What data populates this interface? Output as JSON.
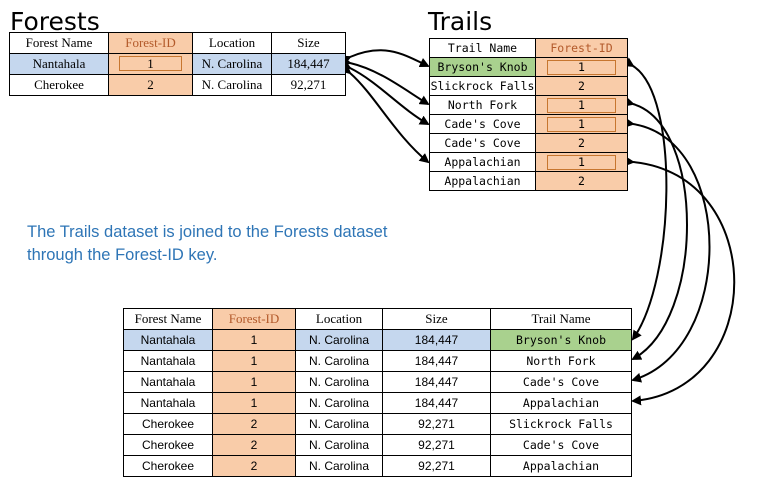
{
  "forests": {
    "title": "Forests",
    "headers": [
      "Forest Name",
      "Forest-ID",
      "Location",
      "Size"
    ],
    "rows": [
      [
        "Nantahala",
        "1",
        "N. Carolina",
        "184,447"
      ],
      [
        "Cherokee",
        "2",
        "N. Carolina",
        "92,271"
      ]
    ]
  },
  "trails": {
    "title": "Trails",
    "headers": [
      "Trail Name",
      "Forest-ID"
    ],
    "rows": [
      [
        "Bryson's Knob",
        "1"
      ],
      [
        "Slickrock Falls",
        "2"
      ],
      [
        "North Fork",
        "1"
      ],
      [
        "Cade's Cove",
        "1"
      ],
      [
        "Cade's Cove",
        "2"
      ],
      [
        "Appalachian",
        "1"
      ],
      [
        "Appalachian",
        "2"
      ]
    ]
  },
  "caption": {
    "line1": "The Trails dataset is joined to the Forests dataset",
    "line2": "through the Forest-ID key."
  },
  "joined": {
    "headers": [
      "Forest Name",
      "Forest-ID",
      "Location",
      "Size",
      "Trail Name"
    ],
    "rows": [
      [
        "Nantahala",
        "1",
        "N. Carolina",
        "184,447",
        "Bryson's Knob"
      ],
      [
        "Nantahala",
        "1",
        "N. Carolina",
        "184,447",
        "North Fork"
      ],
      [
        "Nantahala",
        "1",
        "N. Carolina",
        "184,447",
        "Cade's Cove"
      ],
      [
        "Nantahala",
        "1",
        "N. Carolina",
        "184,447",
        "Appalachian"
      ],
      [
        "Cherokee",
        "2",
        "N. Carolina",
        "92,271",
        "Slickrock Falls"
      ],
      [
        "Cherokee",
        "2",
        "N. Carolina",
        "92,271",
        "Cade's Cove"
      ],
      [
        "Cherokee",
        "2",
        "N. Carolina",
        "92,271",
        "Appalachian"
      ]
    ]
  },
  "colors": {
    "key_fill": "#f9cca9",
    "key_header_text": "#b35a2b",
    "highlight_blue": "#c5d7ee",
    "highlight_green": "#a9d18e",
    "caption_text": "#2e75b6"
  }
}
